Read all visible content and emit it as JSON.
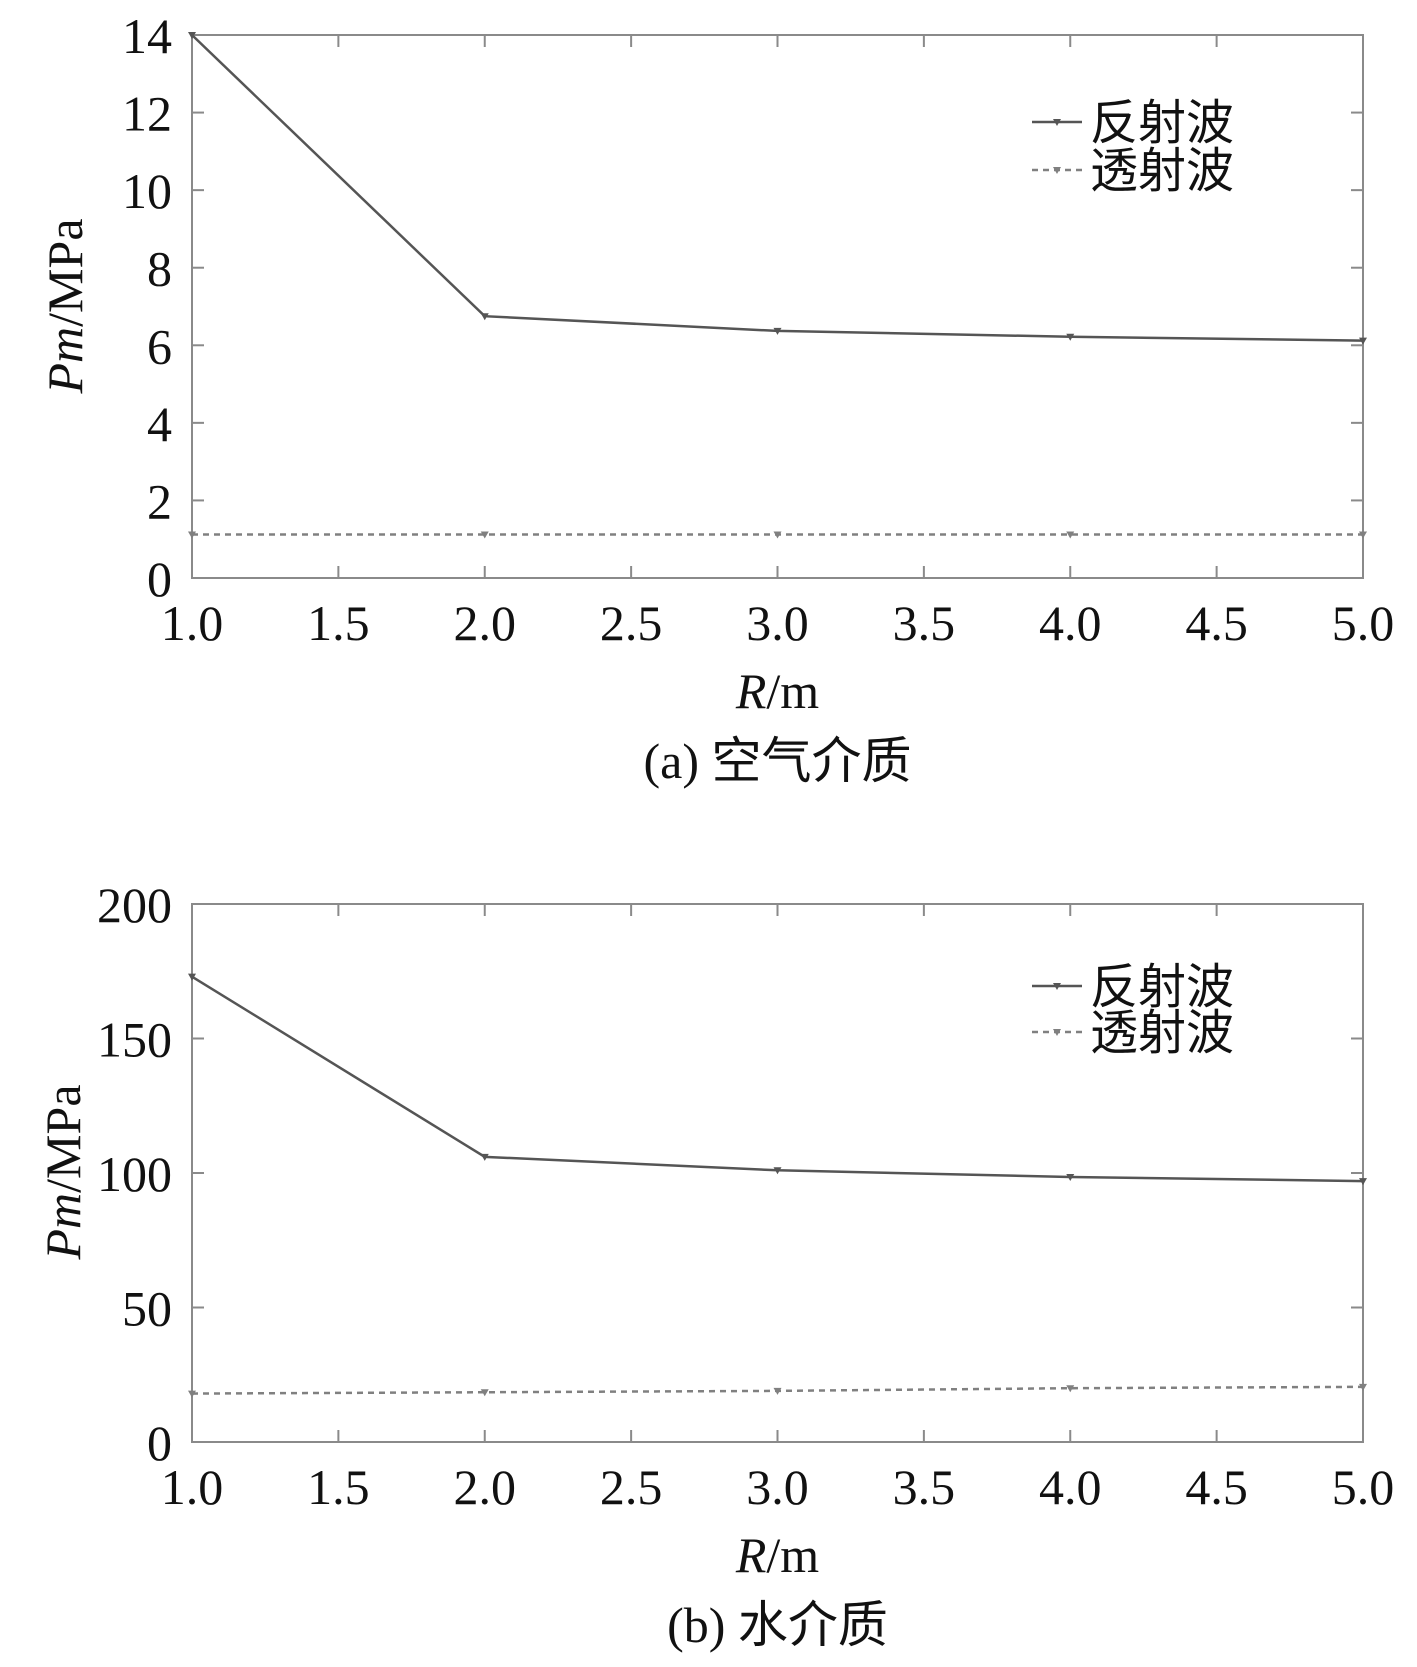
{
  "colors": {
    "reflected": "#555555",
    "transmitted": "#808080",
    "frame": "#8a8a8a",
    "text": "#111111"
  },
  "legend_placement": "top-right",
  "chart_data": [
    {
      "type": "line",
      "caption": "(a) 空气介质",
      "xlabel_italic": "R",
      "xlabel_unit": "/m",
      "ylabel_italic": "Pm",
      "ylabel_unit": "/MPa",
      "x": [
        1.0,
        2.0,
        3.0,
        4.0,
        5.0
      ],
      "xlim": [
        1.0,
        5.0
      ],
      "ylim": [
        0,
        14
      ],
      "xticks": [
        "1.0",
        "1.5",
        "2.0",
        "2.5",
        "3.0",
        "3.5",
        "4.0",
        "4.5",
        "5.0"
      ],
      "yticks": [
        "0",
        "2",
        "4",
        "6",
        "8",
        "10",
        "12",
        "14"
      ],
      "grid": false,
      "series": [
        {
          "name": "反射波",
          "style": "solid",
          "values": [
            14.0,
            6.75,
            6.37,
            6.22,
            6.12
          ]
        },
        {
          "name": "透射波",
          "style": "dashed",
          "values": [
            1.12,
            1.12,
            1.12,
            1.12,
            1.12
          ]
        }
      ]
    },
    {
      "type": "line",
      "caption": "(b) 水介质",
      "xlabel_italic": "R",
      "xlabel_unit": "/m",
      "ylabel_italic": "Pm",
      "ylabel_unit": "/MPa",
      "x": [
        1.0,
        2.0,
        3.0,
        4.0,
        5.0
      ],
      "xlim": [
        1.0,
        5.0
      ],
      "ylim": [
        0,
        200
      ],
      "xticks": [
        "1.0",
        "1.5",
        "2.0",
        "2.5",
        "3.0",
        "3.5",
        "4.0",
        "4.5",
        "5.0"
      ],
      "yticks": [
        "0",
        "50",
        "100",
        "150",
        "200"
      ],
      "grid": false,
      "series": [
        {
          "name": "反射波",
          "style": "solid",
          "values": [
            173,
            106,
            101,
            98.5,
            97
          ]
        },
        {
          "name": "透射波",
          "style": "dashed",
          "values": [
            18,
            18.5,
            19,
            20,
            20.5
          ]
        }
      ]
    }
  ]
}
